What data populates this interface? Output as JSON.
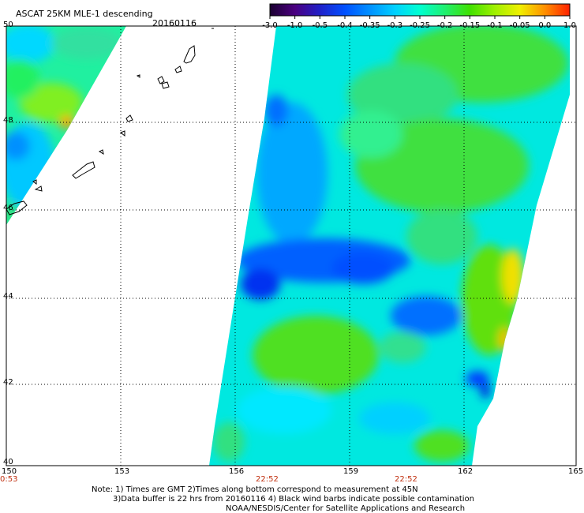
{
  "title": "ASCAT 25KM MLE-1 descending",
  "date": "20160116",
  "colorbar": {
    "ticks": [
      "-3.0",
      "-1.0",
      "-0.5",
      "-0.4",
      "-0.35",
      "-0.3",
      "-0.25",
      "-0.2",
      "-0.15",
      "-0.1",
      "-0.05",
      "0.0",
      "1.0"
    ],
    "colors": [
      "#1a0030",
      "#4b0080",
      "#2020c8",
      "#0050ff",
      "#0090ff",
      "#00d0ff",
      "#00ffd0",
      "#20f070",
      "#40e000",
      "#a0f000",
      "#f0f000",
      "#ff9000",
      "#ff2000"
    ]
  },
  "map": {
    "lon_labels": [
      "150",
      "153",
      "156",
      "159",
      "162",
      "165"
    ],
    "lat_labels": [
      "50",
      "48",
      "46",
      "44",
      "42",
      "40"
    ],
    "time_labels": [
      "0:53",
      "22:52",
      "22:52"
    ]
  },
  "notes": {
    "line1": "Note: 1) Times are GMT 2)Times along bottom correspond to measurement at 45N",
    "line2": "3)Data buffer is 22 hrs from 20160116 4) Black wind barbs indicate possible contamination",
    "line3": "NOAA/NESDIS/Center for Satellite Applications and Research"
  }
}
